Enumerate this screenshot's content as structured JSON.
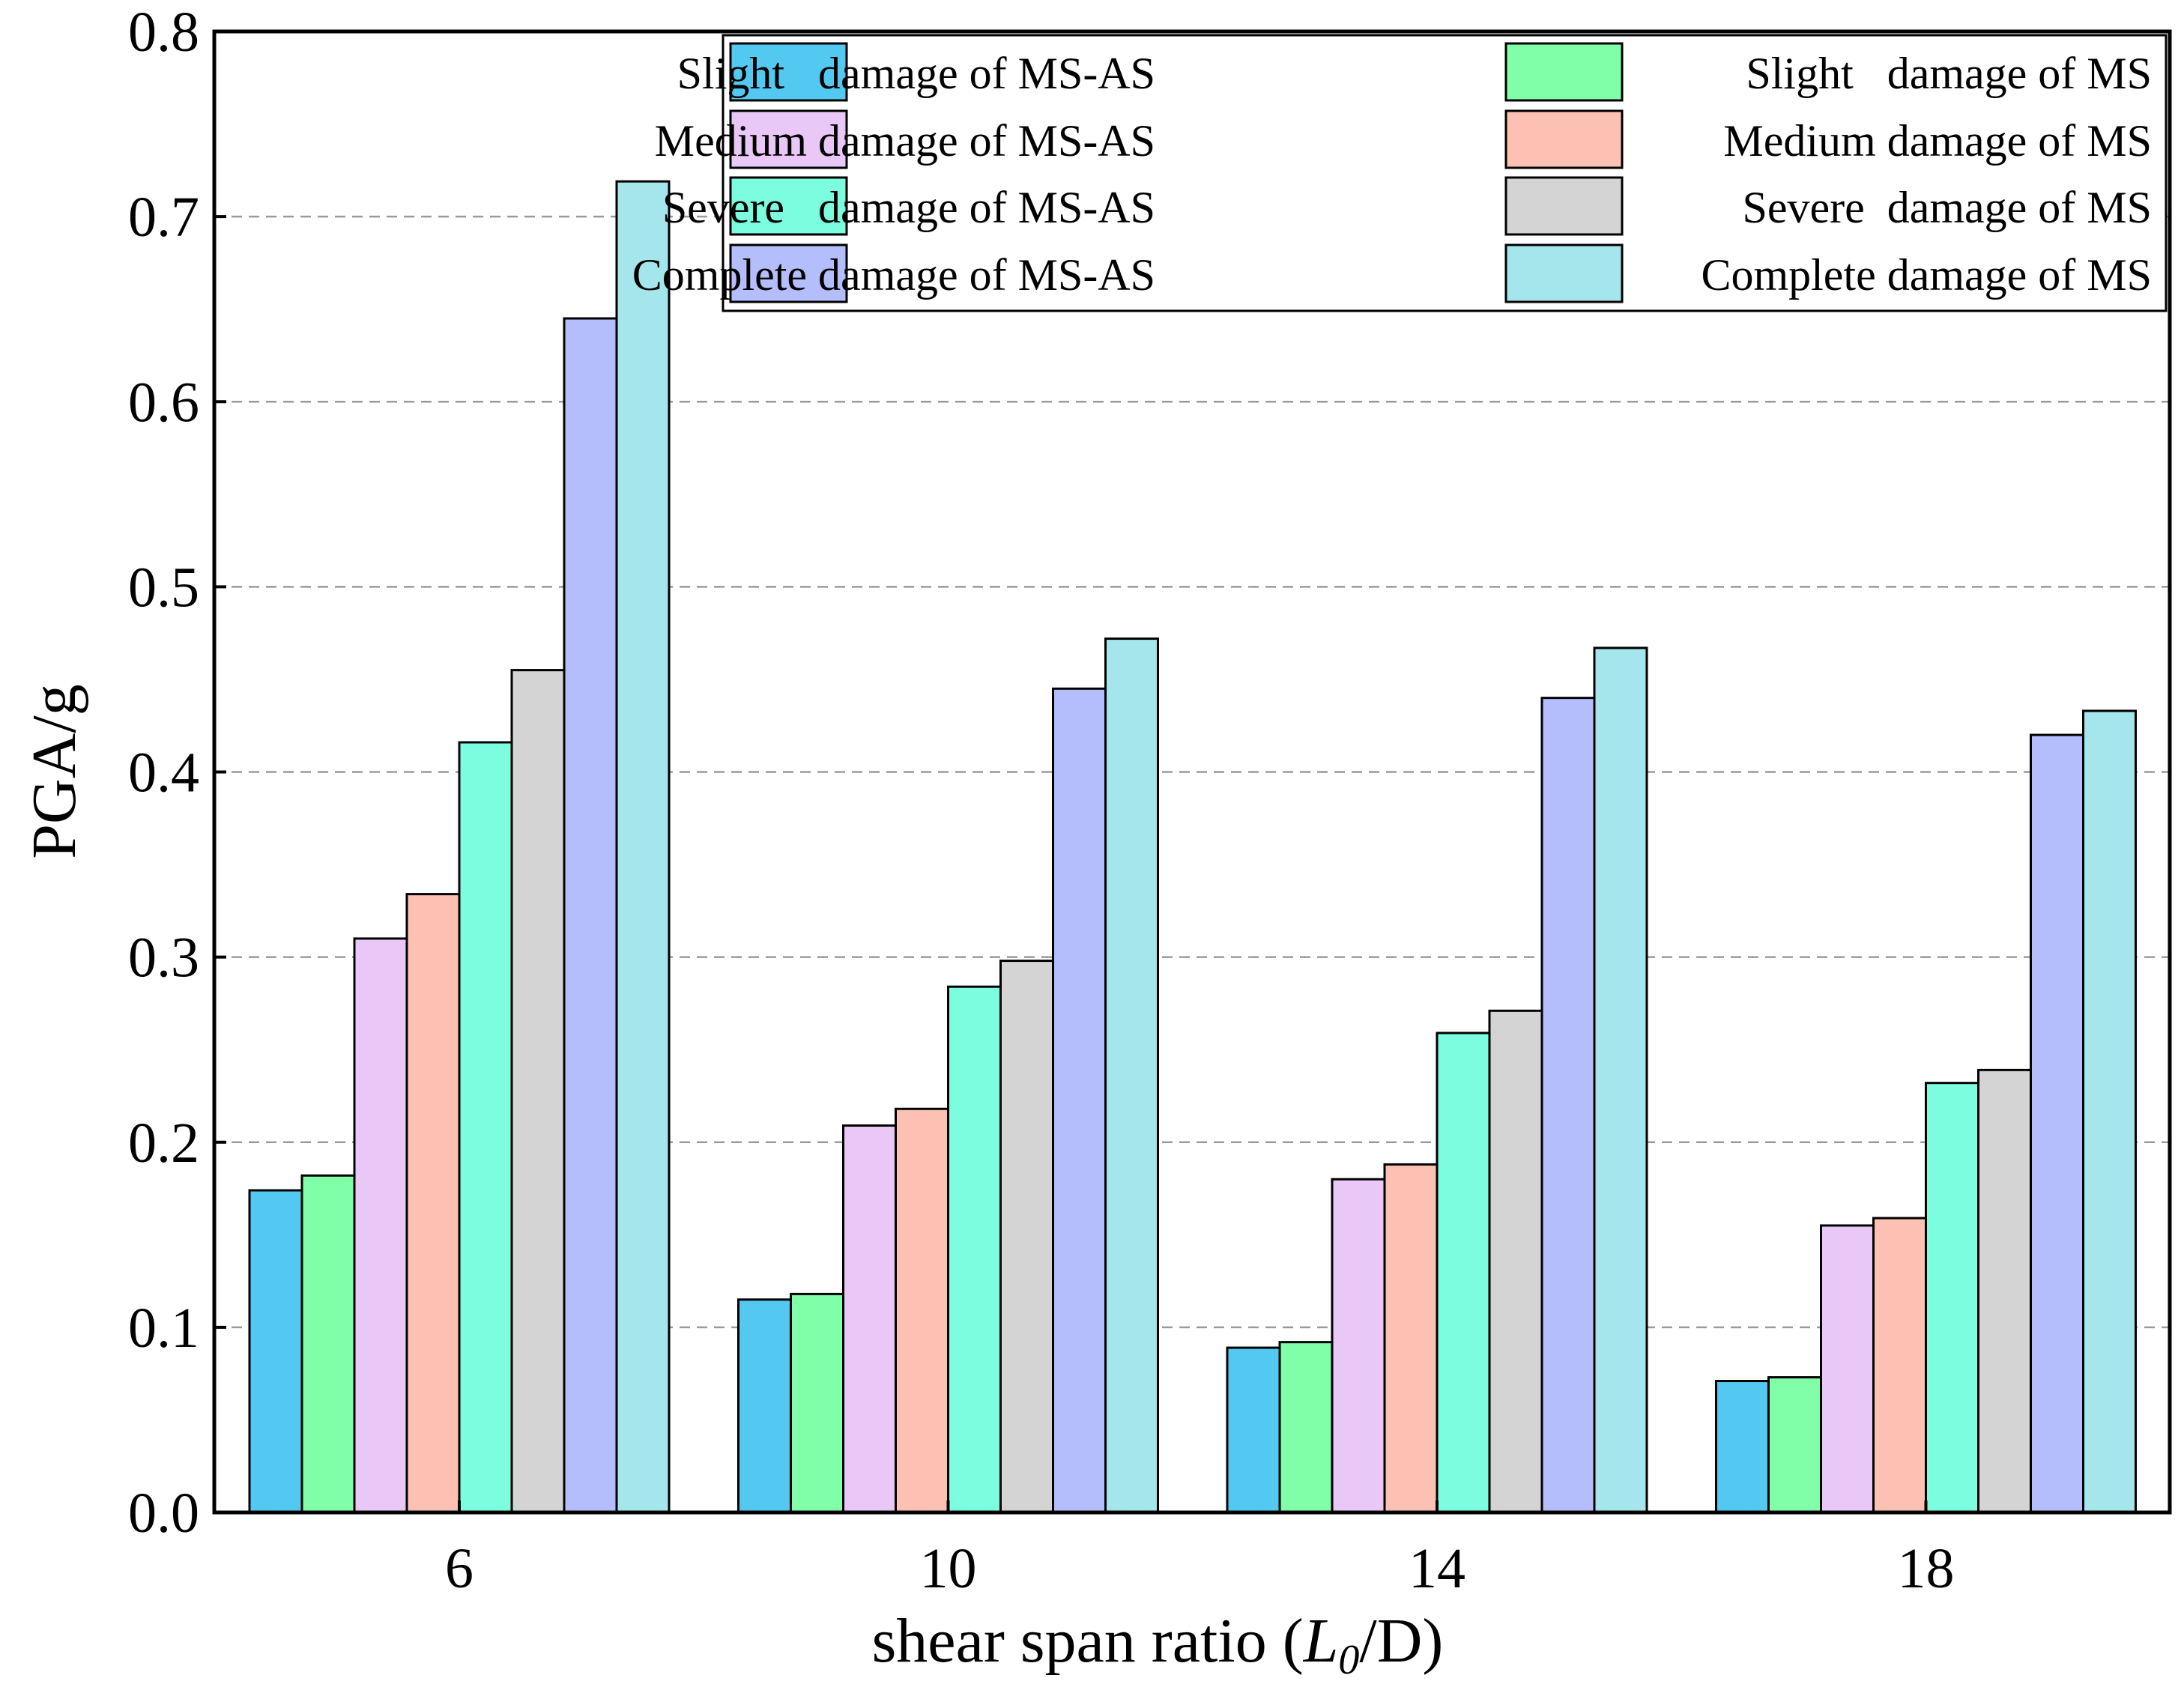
{
  "chart_data": {
    "type": "bar",
    "title": "",
    "xlabel": {
      "prefix": "shear span ratio (",
      "var": "L",
      "sub": "0",
      "suffix": "/D)"
    },
    "ylabel": "PGA/g",
    "ylim": [
      0,
      0.8
    ],
    "yticks": [
      "0.0",
      "0.1",
      "0.2",
      "0.3",
      "0.4",
      "0.5",
      "0.6",
      "0.7",
      "0.8"
    ],
    "grid": "horizontal dashed",
    "legend_position": "top-right",
    "categories": [
      "6",
      "10",
      "14",
      "18"
    ],
    "series": [
      {
        "name": "Slight   damage of MS-AS",
        "color": "#53C8F0",
        "values": [
          0.174,
          0.115,
          0.089,
          0.071
        ]
      },
      {
        "name": "Slight   damage of MS",
        "color": "#80FEA8",
        "values": [
          0.182,
          0.118,
          0.092,
          0.073
        ]
      },
      {
        "name": "Medium damage of MS-AS",
        "color": "#E9C8F8",
        "values": [
          0.31,
          0.209,
          0.18,
          0.155
        ]
      },
      {
        "name": "Medium damage of MS",
        "color": "#FDC1B3",
        "values": [
          0.334,
          0.218,
          0.188,
          0.159
        ]
      },
      {
        "name": "Severe   damage of MS-AS",
        "color": "#7CFDDF",
        "values": [
          0.416,
          0.284,
          0.259,
          0.232
        ]
      },
      {
        "name": "Severe  damage of MS",
        "color": "#D4D4D4",
        "values": [
          0.455,
          0.298,
          0.271,
          0.239
        ]
      },
      {
        "name": "Complete damage of MS-AS",
        "color": "#B4BEFC",
        "values": [
          0.645,
          0.445,
          0.44,
          0.42
        ]
      },
      {
        "name": "Complete damage of MS",
        "color": "#A5E5EC",
        "values": [
          0.719,
          0.472,
          0.467,
          0.433
        ]
      }
    ]
  }
}
